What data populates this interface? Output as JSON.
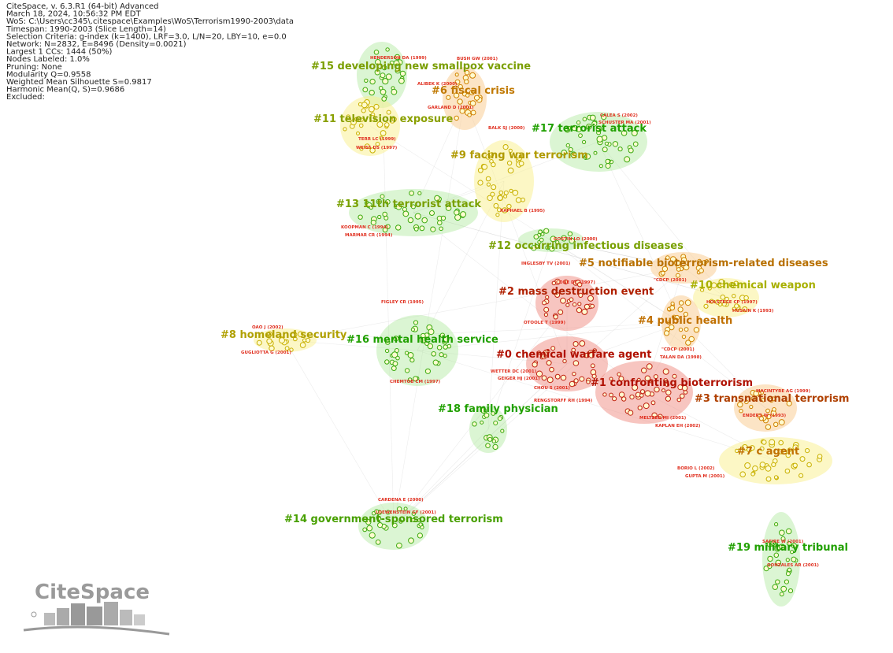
{
  "header": {
    "lines": [
      "CiteSpace, v. 6.3.R1 (64-bit) Advanced",
      "March 18, 2024, 10:56:32 PM EDT",
      "WoS: C:\\Users\\cc345\\.citespace\\Examples\\WoS\\Terrorism1990-2003\\data",
      "Timespan: 1990-2003 (Slice Length=14)",
      "Selection Criteria: g-index (k=1400), LRF=3.0, L/N=20, LBY=10, e=0.0",
      "Network: N=2832, E=8496 (Density=0.0021)",
      "Largest 1 CCs: 1444 (50%)",
      "Nodes Labeled: 1.0%",
      "Pruning: None",
      "Modularity Q=0.9558",
      "Weighted Mean Silhouette S=0.9817",
      "Harmonic Mean(Q, S)=0.9686",
      "Excluded:"
    ]
  },
  "clusters": [
    {
      "label": "#15 developing new smallpox vaccine"
    },
    {
      "label": "#6 fiscal crisis"
    },
    {
      "label": "#11 television exposure"
    },
    {
      "label": "#17 terrorist attack"
    },
    {
      "label": "#9 facing war terrorism"
    },
    {
      "label": "#13 11th terrorist attack"
    },
    {
      "label": "#12 occurring infectious diseases"
    },
    {
      "label": "#5 notifiable bioterrorism-related diseases"
    },
    {
      "label": "#10 chemical weapon"
    },
    {
      "label": "#2 mass destruction event"
    },
    {
      "label": "#4 public health"
    },
    {
      "label": "#8 homeland security"
    },
    {
      "label": "#16 mental health service"
    },
    {
      "label": "#0 chemical warfare agent"
    },
    {
      "label": "#1 confronting bioterrorism"
    },
    {
      "label": "#3 transnational terrorism"
    },
    {
      "label": "#18 family physician"
    },
    {
      "label": "#7 c agent"
    },
    {
      "label": "#14 government-sponsored terrorism"
    },
    {
      "label": "#19 military tribunal"
    }
  ],
  "node_labels": [
    "HENDERSON DA (1999)",
    "BUSH GW (2001)",
    "ALIBEK K (2000)",
    "GARLAND D (2001)",
    "CALEA S (2002)",
    "SCHUSTER MA (2001)",
    "BALK SJ (2000)",
    "TERR LC (1999)",
    "WEISS DS (1997)",
    "RAPHAEL B (1995)",
    "KOOPMAN C (1994)",
    "MARMAR CR (1994)",
    "GOSTIN LO (2000)",
    "INGLESBY TV (2001)",
    "CONE DC (1997)",
    "\"CDCP (2001)",
    "FIGLEY CR (1995)",
    "HOLSTEGE CP (1997)",
    "HUSAIN K (1993)",
    "OTOOLE T (1999)",
    "OAO J (2002)",
    "GUGLIOTTA G (2001)",
    "\"CDCP (2001)",
    "TALAN DA (1998)",
    "WETTER DC (2001)",
    "GEIGER HJ (2001)",
    "CHEMTOB CM (1997)",
    "CHOU S (2001)",
    "RENGSTORFF RH (1994)",
    "MACINTYRE AG (1999)",
    "ENDERS W (1993)",
    "MELTZER MI (2001)",
    "KAPLAN EH (2002)",
    "BORIO L (2002)",
    "GUPTA M (2001)",
    "CARDENA E (2000)",
    "LOEWENSTEIN GF (2001)",
    "SAFIRE W (2001)",
    "GONZALES AR (2001)"
  ],
  "logo": "CiteSpace"
}
